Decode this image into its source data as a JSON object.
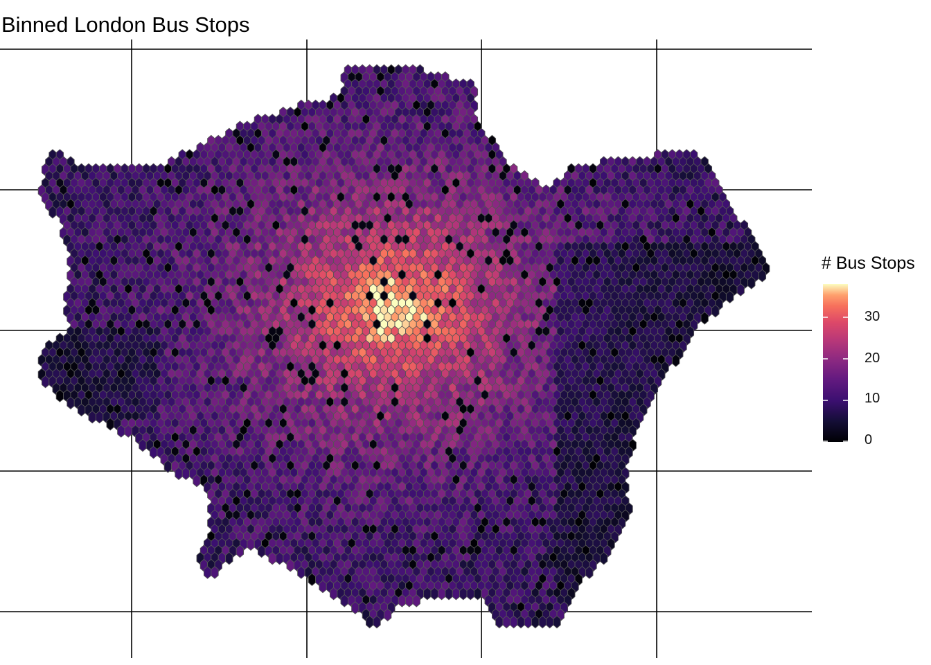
{
  "map": {
    "title": "Binned London Bus Stops",
    "region": "Greater London",
    "bin_shape": "hexagon",
    "graticule": "on",
    "palette": "magma",
    "colors": {
      "low": "#000004",
      "mid_low": "#3b0f70",
      "mid": "#8c2981",
      "mid_high": "#de4968",
      "high": "#fe9f6d",
      "max": "#fcfdbf",
      "hex_stroke": "#555555",
      "graticule": "#000000"
    },
    "hotspot": "central London",
    "max_count_estimate": 38
  },
  "legend": {
    "title": "# Bus Stops",
    "ticks": [
      "0",
      "10",
      "20",
      "30"
    ],
    "range": [
      0,
      38
    ]
  }
}
